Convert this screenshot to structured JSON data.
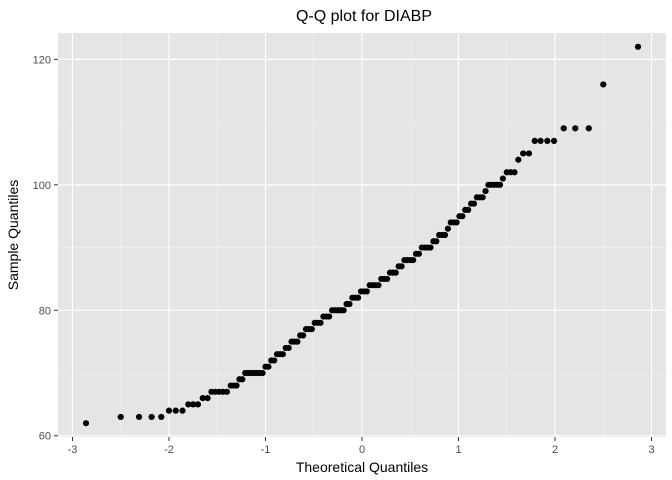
{
  "chart_data": {
    "type": "scatter",
    "title": "Q-Q plot for DIABP",
    "xlabel": "Theoretical Quantiles",
    "ylabel": "Sample Quantiles",
    "xlim": [
      -3.15,
      3.15
    ],
    "ylim": [
      59.8,
      124.2
    ],
    "x_ticks": [
      -3,
      -2,
      -1,
      0,
      1,
      2,
      3
    ],
    "x_tick_labels": [
      "-3",
      "-2",
      "-1",
      "0",
      "1",
      "2",
      "3"
    ],
    "y_ticks": [
      60,
      80,
      100,
      120
    ],
    "y_tick_labels": [
      "60",
      "80",
      "100",
      "120"
    ],
    "grid": true,
    "legend": "none",
    "point_color": "#000000",
    "panel_background": "#e5e5e5",
    "points": [
      [
        -2.86,
        62
      ],
      [
        -2.5,
        63
      ],
      [
        -2.31,
        63
      ],
      [
        -2.18,
        63
      ],
      [
        -2.08,
        63
      ],
      [
        -2.0,
        64
      ],
      [
        -1.93,
        64
      ],
      [
        -1.86,
        64
      ],
      [
        -1.8,
        65
      ],
      [
        -1.75,
        65
      ],
      [
        -1.7,
        65
      ],
      [
        -1.65,
        66
      ],
      [
        -1.6,
        66
      ],
      [
        -1.56,
        67
      ],
      [
        -1.52,
        67
      ],
      [
        -1.48,
        67
      ],
      [
        -1.44,
        67
      ],
      [
        -1.4,
        67
      ],
      [
        -1.36,
        68
      ],
      [
        -1.33,
        68
      ],
      [
        -1.3,
        68
      ],
      [
        -1.27,
        69
      ],
      [
        -1.24,
        69
      ],
      [
        -1.21,
        70
      ],
      [
        -1.18,
        70
      ],
      [
        -1.15,
        70
      ],
      [
        -1.12,
        70
      ],
      [
        -1.09,
        70
      ],
      [
        -1.06,
        70
      ],
      [
        -1.03,
        70
      ],
      [
        -1.0,
        71
      ],
      [
        -0.97,
        71
      ],
      [
        -0.94,
        72
      ],
      [
        -0.91,
        72
      ],
      [
        -0.88,
        73
      ],
      [
        -0.85,
        73
      ],
      [
        -0.82,
        73
      ],
      [
        -0.79,
        74
      ],
      [
        -0.76,
        74
      ],
      [
        -0.73,
        75
      ],
      [
        -0.7,
        75
      ],
      [
        -0.67,
        75
      ],
      [
        -0.64,
        76
      ],
      [
        -0.61,
        76
      ],
      [
        -0.58,
        77
      ],
      [
        -0.55,
        77
      ],
      [
        -0.52,
        77
      ],
      [
        -0.49,
        78
      ],
      [
        -0.46,
        78
      ],
      [
        -0.43,
        78
      ],
      [
        -0.4,
        79
      ],
      [
        -0.37,
        79
      ],
      [
        -0.34,
        79
      ],
      [
        -0.31,
        80
      ],
      [
        -0.28,
        80
      ],
      [
        -0.25,
        80
      ],
      [
        -0.22,
        80
      ],
      [
        -0.19,
        80
      ],
      [
        -0.16,
        81
      ],
      [
        -0.13,
        81
      ],
      [
        -0.1,
        82
      ],
      [
        -0.07,
        82
      ],
      [
        -0.04,
        82
      ],
      [
        -0.01,
        83
      ],
      [
        0.02,
        83
      ],
      [
        0.05,
        83
      ],
      [
        0.08,
        84
      ],
      [
        0.11,
        84
      ],
      [
        0.14,
        84
      ],
      [
        0.17,
        84
      ],
      [
        0.2,
        85
      ],
      [
        0.23,
        85
      ],
      [
        0.26,
        85
      ],
      [
        0.29,
        86
      ],
      [
        0.32,
        86
      ],
      [
        0.35,
        86
      ],
      [
        0.38,
        87
      ],
      [
        0.41,
        87
      ],
      [
        0.44,
        88
      ],
      [
        0.47,
        88
      ],
      [
        0.5,
        88
      ],
      [
        0.53,
        88
      ],
      [
        0.56,
        89
      ],
      [
        0.59,
        89
      ],
      [
        0.62,
        90
      ],
      [
        0.65,
        90
      ],
      [
        0.68,
        90
      ],
      [
        0.71,
        90
      ],
      [
        0.74,
        91
      ],
      [
        0.77,
        91
      ],
      [
        0.8,
        92
      ],
      [
        0.83,
        92
      ],
      [
        0.86,
        92
      ],
      [
        0.89,
        93
      ],
      [
        0.92,
        94
      ],
      [
        0.95,
        94
      ],
      [
        0.98,
        94
      ],
      [
        1.01,
        95
      ],
      [
        1.04,
        95
      ],
      [
        1.07,
        96
      ],
      [
        1.1,
        96
      ],
      [
        1.13,
        97
      ],
      [
        1.16,
        97
      ],
      [
        1.19,
        98
      ],
      [
        1.22,
        98
      ],
      [
        1.25,
        98
      ],
      [
        1.28,
        99
      ],
      [
        1.31,
        100
      ],
      [
        1.34,
        100
      ],
      [
        1.37,
        100
      ],
      [
        1.4,
        100
      ],
      [
        1.43,
        100
      ],
      [
        1.46,
        101
      ],
      [
        1.5,
        102
      ],
      [
        1.54,
        102
      ],
      [
        1.58,
        102
      ],
      [
        1.62,
        104
      ],
      [
        1.67,
        105
      ],
      [
        1.73,
        105
      ],
      [
        1.79,
        107
      ],
      [
        1.85,
        107
      ],
      [
        1.92,
        107
      ],
      [
        1.99,
        107
      ],
      [
        2.09,
        109
      ],
      [
        2.21,
        109
      ],
      [
        2.35,
        109
      ],
      [
        2.5,
        116
      ],
      [
        2.86,
        122
      ]
    ]
  }
}
